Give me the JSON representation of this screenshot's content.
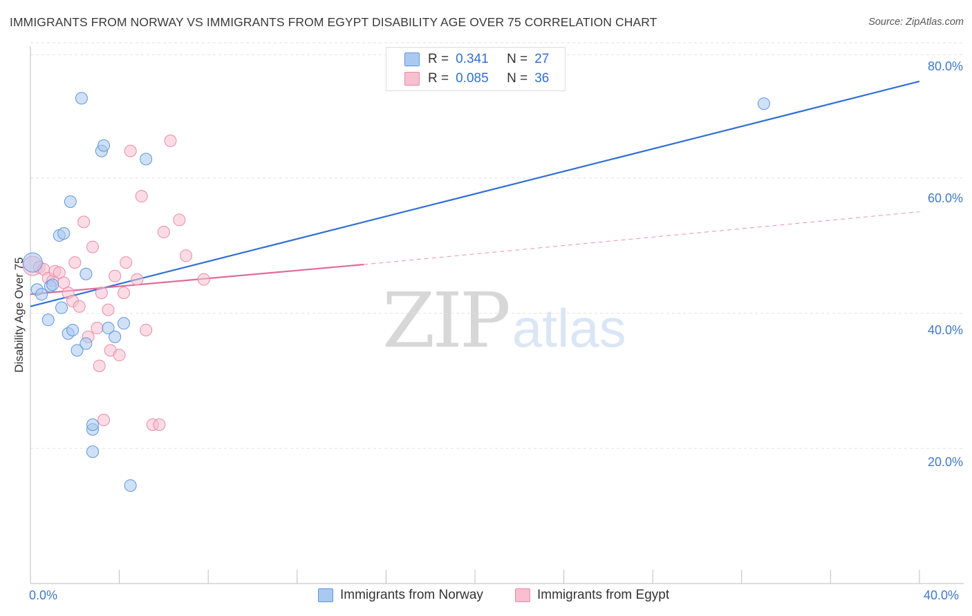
{
  "header": {
    "title": "IMMIGRANTS FROM NORWAY VS IMMIGRANTS FROM EGYPT DISABILITY AGE OVER 75 CORRELATION CHART",
    "source": "Source: ZipAtlas.com"
  },
  "watermark": {
    "zip": "ZIP",
    "atlas": "atlas"
  },
  "legend": {
    "rows": [
      {
        "r_label": "R =",
        "r_value": "0.341",
        "n_label": "N =",
        "n_value": "27"
      },
      {
        "r_label": "R =",
        "r_value": "0.085",
        "n_label": "N =",
        "n_value": "36"
      }
    ]
  },
  "colors": {
    "norway_fill": "#aac9f0",
    "norway_stroke": "#5d95dc",
    "norway_line": "#2f6fd4",
    "egypt_fill": "#f7bfd0",
    "egypt_stroke": "#e88aaa",
    "egypt_line": "#e06b96",
    "grid": "#e2e2e2",
    "tick_label": "#3f78c8"
  },
  "chart_data": {
    "type": "scatter",
    "title": "IMMIGRANTS FROM NORWAY VS IMMIGRANTS FROM EGYPT DISABILITY AGE OVER 75 CORRELATION CHART",
    "xlabel": "",
    "ylabel": "Disability Age Over 75",
    "xlim": [
      0,
      40
    ],
    "ylim": [
      0,
      80
    ],
    "x_tick_labels": [
      "0.0%",
      "40.0%"
    ],
    "y_ticks": [
      20,
      40,
      60,
      80
    ],
    "y_tick_labels": [
      "20.0%",
      "40.0%",
      "60.0%",
      "80.0%"
    ],
    "grid": true,
    "legend_position": "top-center",
    "series": [
      {
        "name": "Immigrants from Norway",
        "r": 0.341,
        "n": 27,
        "x": [
          0.1,
          0.3,
          0.5,
          0.8,
          0.9,
          1.0,
          1.3,
          1.4,
          1.5,
          1.7,
          1.8,
          1.9,
          2.1,
          2.3,
          2.5,
          2.5,
          2.8,
          2.8,
          2.8,
          3.2,
          3.3,
          3.5,
          3.8,
          4.2,
          4.5,
          5.2,
          33.0
        ],
        "y": [
          47.5,
          43.5,
          42.8,
          39.0,
          44.0,
          44.2,
          51.5,
          40.8,
          51.8,
          37.0,
          56.5,
          37.5,
          34.5,
          71.8,
          45.8,
          35.5,
          22.8,
          19.5,
          23.5,
          64.0,
          64.8,
          37.8,
          36.5,
          38.5,
          14.5,
          62.8,
          71.0
        ],
        "trend": {
          "x": [
            0,
            40
          ],
          "y": [
            41.0,
            74.3
          ]
        }
      },
      {
        "name": "Immigrants from Egypt",
        "r": 0.085,
        "n": 36,
        "x": [
          0.1,
          0.4,
          0.6,
          0.8,
          1.0,
          1.1,
          1.3,
          1.5,
          1.7,
          1.9,
          2.0,
          2.2,
          2.4,
          2.6,
          2.8,
          3.0,
          3.1,
          3.2,
          3.3,
          3.5,
          3.6,
          3.8,
          4.0,
          4.2,
          4.3,
          4.5,
          4.8,
          5.0,
          5.2,
          5.5,
          5.8,
          6.0,
          6.3,
          6.7,
          7.0,
          7.8
        ],
        "y": [
          47.0,
          46.8,
          46.5,
          45.2,
          44.8,
          46.2,
          46.0,
          44.5,
          43.0,
          41.8,
          47.5,
          41.0,
          53.5,
          36.5,
          49.8,
          37.8,
          32.2,
          43.0,
          24.2,
          40.5,
          34.5,
          45.5,
          33.8,
          43.0,
          47.5,
          64.0,
          45.0,
          57.3,
          37.5,
          23.5,
          23.5,
          52.0,
          65.5,
          53.8,
          48.5,
          45.0
        ],
        "trend": {
          "x": [
            0,
            15
          ],
          "y": [
            42.8,
            47.2
          ]
        },
        "trend_dashed": {
          "x": [
            15,
            40
          ],
          "y": [
            47.2,
            55.0
          ]
        }
      }
    ]
  },
  "bottom_legend": {
    "items": [
      {
        "label": "Immigrants from Norway"
      },
      {
        "label": "Immigrants from Egypt"
      }
    ]
  }
}
